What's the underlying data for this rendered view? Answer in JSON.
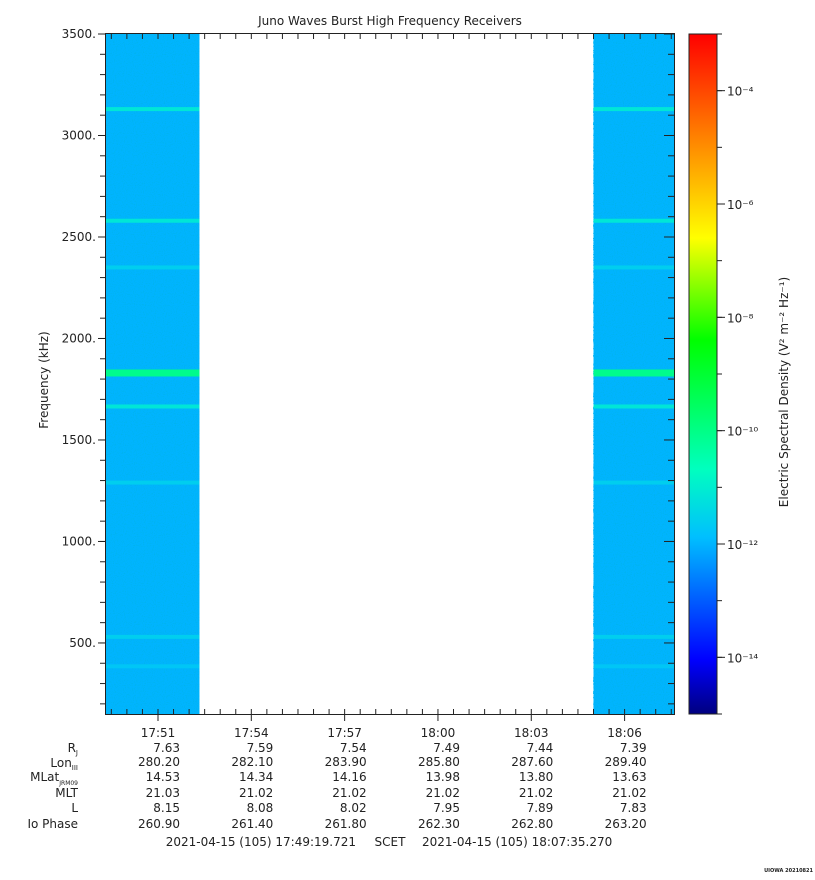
{
  "chart_data": {
    "type": "heatmap",
    "title": "Juno Waves Burst High Frequency Receivers",
    "ylabel": "Frequency (kHz)",
    "colorbar_label": "Electric Spectral Density (V² m⁻² Hz⁻¹)",
    "ylim": [
      150,
      3500
    ],
    "y_ticks": [
      "3500.",
      "3000.",
      "2500.",
      "2000.",
      "1500.",
      "1000.",
      "500."
    ],
    "y_tick_values": [
      3500,
      3000,
      2500,
      2000,
      1500,
      1000,
      500
    ],
    "x_range_minutes": [
      "17:49:19.721",
      "18:07:35.270"
    ],
    "x_ticks": [
      "17:51",
      "17:54",
      "17:57",
      "18:00",
      "18:03",
      "18:06"
    ],
    "x_tick_minutes": [
      "17:51",
      "17:54",
      "17:57",
      "18:00",
      "18:03",
      "18:06"
    ],
    "colorbar": {
      "scale": "log",
      "range": [
        "1e-15",
        "1e-3"
      ],
      "ticks": [
        "10⁻⁴",
        "10⁻⁶",
        "10⁻⁸",
        "10⁻¹⁰",
        "10⁻¹²",
        "10⁻¹⁴"
      ],
      "tick_exponents": [
        -4,
        -6,
        -8,
        -10,
        -12,
        -14
      ],
      "colors": [
        "#00007f",
        "#0000ff",
        "#00bfff",
        "#00ffbf",
        "#00ff00",
        "#ffff00",
        "#ff8000",
        "#ff0000"
      ]
    },
    "data_blocks": [
      {
        "start": "17:49:19.721",
        "end": "17:52:20",
        "background_level": "1e-12"
      },
      {
        "start": "18:05:00",
        "end": "18:07:35.270",
        "background_level": "1e-12"
      }
    ],
    "emission_lines": [
      {
        "frequency_khz": 3130,
        "level": "1e-11"
      },
      {
        "frequency_khz": 2580,
        "level": "1e-11"
      },
      {
        "frequency_khz": 2350,
        "level": "3e-12"
      },
      {
        "frequency_khz": 1830,
        "level": "1e-10"
      },
      {
        "frequency_khz": 1665,
        "level": "1e-11"
      },
      {
        "frequency_khz": 1290,
        "level": "3e-12"
      },
      {
        "frequency_khz": 530,
        "level": "3e-12"
      },
      {
        "frequency_khz": 385,
        "level": "2e-12"
      }
    ]
  },
  "ephemeris": {
    "row_labels": {
      "rj": "R",
      "rj_sub": "J",
      "lon": "Lon",
      "lon_sub": "III",
      "mlat": "MLat",
      "mlat_sub": "JRM09",
      "mlt": "MLT",
      "l": "L",
      "io": "Io Phase"
    },
    "rows": [
      [
        "7.63",
        "7.59",
        "7.54",
        "7.49",
        "7.44",
        "7.39"
      ],
      [
        "280.20",
        "282.10",
        "283.90",
        "285.80",
        "287.60",
        "289.40"
      ],
      [
        "14.53",
        "14.34",
        "14.16",
        "13.98",
        "13.80",
        "13.63"
      ],
      [
        "21.03",
        "21.02",
        "21.02",
        "21.02",
        "21.02",
        "21.02"
      ],
      [
        "8.15",
        "8.08",
        "8.02",
        "7.95",
        "7.89",
        "7.83"
      ],
      [
        "260.90",
        "261.40",
        "261.80",
        "262.30",
        "262.80",
        "263.20"
      ]
    ]
  },
  "footer": {
    "start": "2021-04-15 (105) 17:49:19.721",
    "scet": "SCET",
    "end": "2021-04-15 (105) 18:07:35.270"
  },
  "stamp": "UIOWA 20210821"
}
